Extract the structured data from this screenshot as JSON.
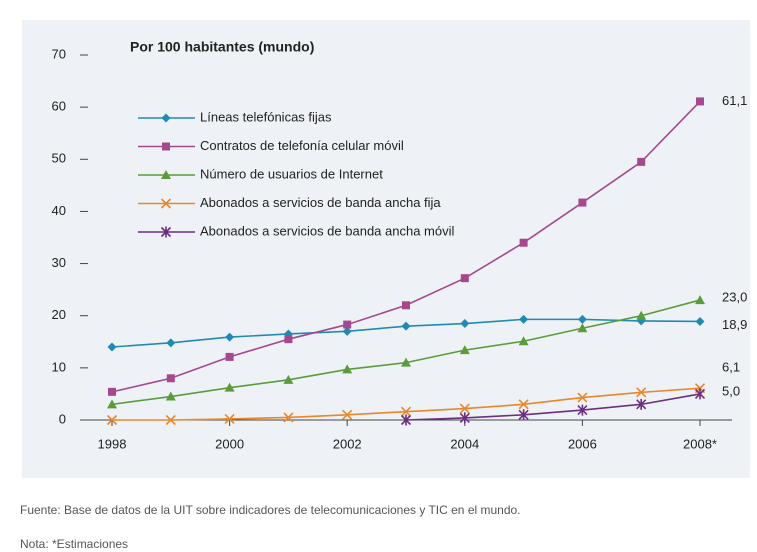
{
  "chart_data": {
    "type": "line",
    "title": "Por 100 habitantes (mundo)",
    "x": [
      1998,
      1999,
      2000,
      2001,
      2002,
      2003,
      2004,
      2005,
      2006,
      2007,
      2008
    ],
    "xlim": [
      1998,
      2008
    ],
    "xticks": [
      1998,
      2000,
      2002,
      2004,
      2006,
      {
        "value": 2008,
        "label": "2008*"
      }
    ],
    "ylim": [
      0,
      70
    ],
    "yticks": [
      0,
      10,
      20,
      30,
      40,
      50,
      60,
      70
    ],
    "grid": false,
    "legend": "upper left",
    "series": [
      {
        "name": "Líneas telefónicas fijas",
        "color": "#1f8bb5",
        "marker": "diamond",
        "values": [
          14.0,
          14.8,
          15.9,
          16.5,
          17.0,
          18.0,
          18.5,
          19.3,
          19.3,
          19.0,
          18.9
        ],
        "value_labels": [
          null,
          null,
          null,
          null,
          null,
          null,
          null,
          null,
          null,
          null,
          "18,9"
        ]
      },
      {
        "name": "Contratos de telefonía celular móvil",
        "color": "#a5488f",
        "marker": "square",
        "values": [
          5.4,
          8.0,
          12.1,
          15.5,
          18.3,
          22.0,
          27.2,
          34.0,
          41.7,
          49.5,
          61.1
        ],
        "value_labels": [
          null,
          null,
          null,
          null,
          null,
          null,
          null,
          null,
          null,
          null,
          "61,1"
        ]
      },
      {
        "name": "Número de usuarios de Internet",
        "color": "#5b9b3c",
        "marker": "triangle",
        "values": [
          3.0,
          4.5,
          6.2,
          7.7,
          9.7,
          11.0,
          13.4,
          15.1,
          17.6,
          20.0,
          23.0
        ],
        "value_labels": [
          null,
          null,
          null,
          null,
          null,
          null,
          null,
          null,
          null,
          null,
          "23,0"
        ]
      },
      {
        "name": "Abonados a servicios de banda ancha fija",
        "color": "#e8872b",
        "marker": "x",
        "values": [
          0,
          0,
          0.2,
          0.5,
          1.0,
          1.6,
          2.2,
          3.0,
          4.3,
          5.3,
          6.1
        ],
        "value_labels": [
          null,
          null,
          null,
          null,
          null,
          null,
          null,
          null,
          null,
          null,
          "6,1"
        ]
      },
      {
        "name": "Abonados a servicios de banda ancha móvil",
        "color": "#6b2e80",
        "marker": "star",
        "values": [
          null,
          null,
          null,
          null,
          null,
          0.0,
          0.4,
          1.0,
          1.9,
          3.0,
          5.0
        ],
        "value_labels": [
          null,
          null,
          null,
          null,
          null,
          null,
          null,
          null,
          null,
          null,
          "5,0"
        ]
      }
    ],
    "source": "Fuente: Base de datos de la UIT sobre indicadores de telecomunicaciones y TIC en el mundo.",
    "note": "Nota: *Estimaciones"
  }
}
